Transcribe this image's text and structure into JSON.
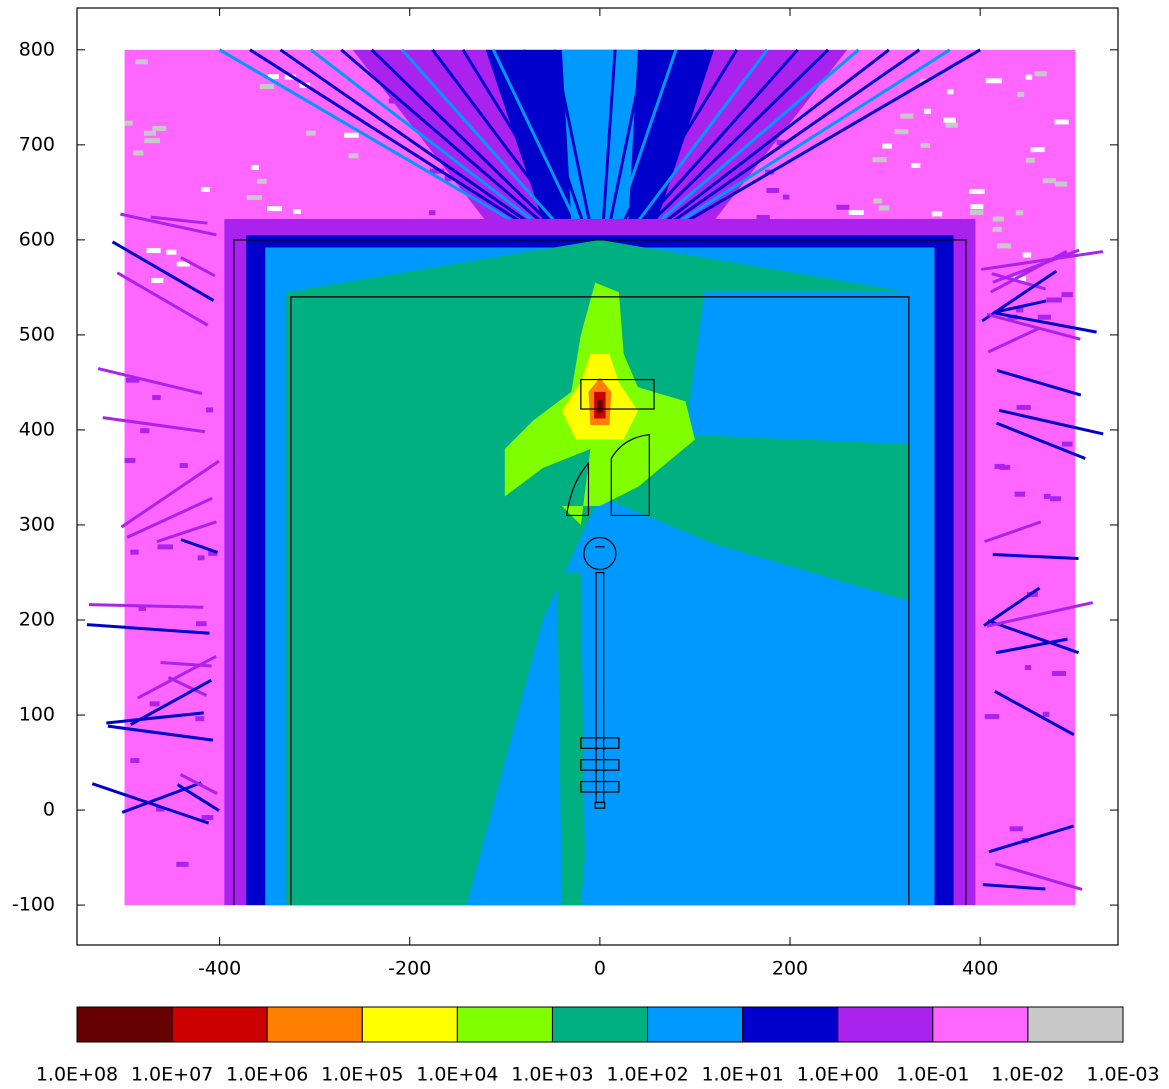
{
  "chart_data": {
    "type": "heatmap",
    "xlim": [
      -550,
      545
    ],
    "ylim": [
      -142,
      844
    ],
    "xticks": [
      -400,
      -200,
      0,
      200,
      400
    ],
    "yticks": [
      -100,
      0,
      100,
      200,
      300,
      400,
      500,
      600,
      700,
      800
    ],
    "colorbar": {
      "colors": [
        "#660000",
        "#cc0000",
        "#ff8000",
        "#ffff00",
        "#80ff00",
        "#00b080",
        "#0099ff",
        "#0000cc",
        "#aa22ee",
        "#ff66ff",
        "#c8c8c8",
        "#ffffff"
      ],
      "ticks": [
        {
          "value": 100000000,
          "label": "1.0E+08"
        },
        {
          "value": 10000000,
          "label": "1.0E+07"
        },
        {
          "value": 1000000,
          "label": "1.0E+06"
        },
        {
          "value": 100000,
          "label": "1.0E+05"
        },
        {
          "value": 10000,
          "label": "1.0E+04"
        },
        {
          "value": 1000,
          "label": "1.0E+03"
        },
        {
          "value": 100,
          "label": "1.0E+02"
        },
        {
          "value": 10,
          "label": "1.0E+01"
        },
        {
          "value": 1,
          "label": "1.0E+00"
        },
        {
          "value": 0.1,
          "label": "1.0E-01"
        },
        {
          "value": 0.01,
          "label": "1.0E-02"
        },
        {
          "value": 0.001,
          "label": "1.0E-03"
        }
      ]
    }
  }
}
